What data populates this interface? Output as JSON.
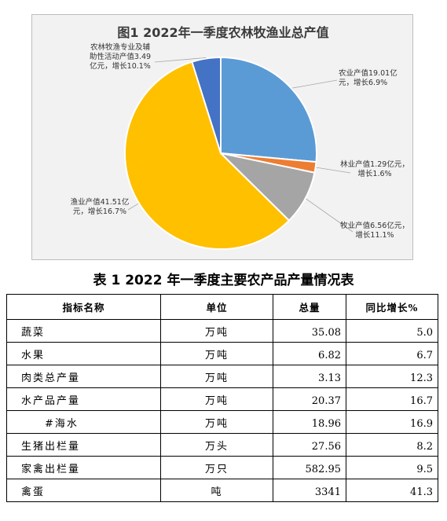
{
  "chart": {
    "title": "图1 2022年一季度农林牧渔业总产值"
  },
  "chart_data": {
    "type": "pie",
    "title": "图1 2022年一季度农林牧渔业总产值",
    "unit": "亿元",
    "slices": [
      {
        "name": "农业",
        "value": 19.01,
        "growth": 6.9,
        "color": "#5b9bd5",
        "label_lines": [
          "农业产值19.01亿",
          "元，增长6.9%"
        ]
      },
      {
        "name": "林业",
        "value": 1.29,
        "growth": 1.6,
        "color": "#ed7d31",
        "label_lines": [
          "林业产值1.29亿元，",
          "增长1.6%"
        ]
      },
      {
        "name": "牧业",
        "value": 6.56,
        "growth": 11.1,
        "color": "#a5a5a5",
        "label_lines": [
          "牧业产值6.56亿元，",
          "增长11.1%"
        ]
      },
      {
        "name": "渔业",
        "value": 41.51,
        "growth": 16.7,
        "color": "#ffc000",
        "label_lines": [
          "渔业产值41.51亿",
          "元，增长16.7%"
        ]
      },
      {
        "name": "农林牧渔专业及辅助性活动",
        "value": 3.49,
        "growth": 10.1,
        "color": "#4472c4",
        "label_lines": [
          "农林牧渔专业及辅",
          "助性活动产值3.49",
          "亿元，增长10.1%"
        ]
      }
    ]
  },
  "table": {
    "title": "表 1  2022 年一季度主要农产品产量情况表",
    "headers": [
      "指标名称",
      "单位",
      "总量",
      "同比增长%"
    ],
    "rows": [
      {
        "name": "蔬菜",
        "unit": "万吨",
        "total": "35.08",
        "growth": "5.0"
      },
      {
        "name": "水果",
        "unit": "万吨",
        "total": "6.82",
        "growth": "6.7"
      },
      {
        "name": "肉类总产量",
        "unit": "万吨",
        "total": "3.13",
        "growth": "12.3"
      },
      {
        "name": "水产品产量",
        "unit": "万吨",
        "total": "20.37",
        "growth": "16.7"
      },
      {
        "name": "#海水",
        "unit": "万吨",
        "total": "18.96",
        "growth": "16.9"
      },
      {
        "name": "生猪出栏量",
        "unit": "万头",
        "total": "27.56",
        "growth": "8.2"
      },
      {
        "name": "家禽出栏量",
        "unit": "万只",
        "total": "582.95",
        "growth": "9.5"
      },
      {
        "name": "禽蛋",
        "unit": "吨",
        "total": "3341",
        "growth": "41.3"
      }
    ]
  }
}
